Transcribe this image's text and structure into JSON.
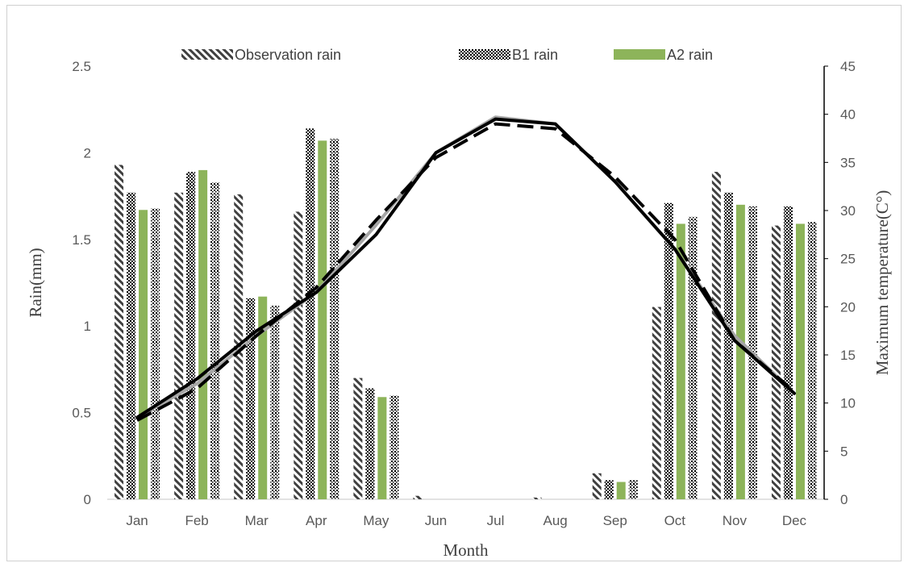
{
  "chart_data": {
    "type": "bar",
    "categories": [
      "Jan",
      "Feb",
      "Mar",
      "Apr",
      "May",
      "Jun",
      "Jul",
      "Aug",
      "Sep",
      "Oct",
      "Nov",
      "Dec"
    ],
    "xlabel": "Month",
    "ylabel": "Rain(mm)",
    "y2label": "Maximum temperature(C°)",
    "ylim": [
      0,
      2.5
    ],
    "y2lim": [
      0,
      45
    ],
    "yticks": [
      "0",
      "0.5",
      "1",
      "1.5",
      "2",
      "2.5"
    ],
    "y2ticks": [
      "0",
      "5",
      "10",
      "15",
      "20",
      "25",
      "30",
      "35",
      "40",
      "45"
    ],
    "legend_position": "top",
    "series": [
      {
        "name": "Observation rain",
        "pattern": "diagonal",
        "color": "#404040",
        "values": [
          1.93,
          1.77,
          1.76,
          1.66,
          0.7,
          0.02,
          0.0,
          0.01,
          0.15,
          1.11,
          1.89,
          1.58
        ]
      },
      {
        "name": "B1 rain",
        "pattern": "checker",
        "color": "#000000",
        "values": [
          1.77,
          1.89,
          1.16,
          2.14,
          0.64,
          0.0,
          0.0,
          0.0,
          0.11,
          1.71,
          1.77,
          1.69
        ]
      },
      {
        "name": "A2 rain",
        "pattern": "solid",
        "color": "#8db45a",
        "values": [
          1.67,
          1.9,
          1.17,
          2.07,
          0.59,
          0.0,
          0.0,
          0.0,
          0.1,
          1.59,
          1.7,
          1.59
        ]
      },
      {
        "pattern": "dots",
        "color": "#000000",
        "values": [
          1.68,
          1.83,
          1.12,
          2.08,
          0.6,
          0.0,
          0.0,
          0.0,
          0.11,
          1.63,
          1.69,
          1.6
        ]
      }
    ],
    "lines": [
      {
        "style": "solid",
        "color": "#a6a6a6",
        "values": [
          8.5,
          12.0,
          17.0,
          21.5,
          28.5,
          36.0,
          39.7,
          39.0,
          33.0,
          26.0,
          17.0,
          11.0
        ]
      },
      {
        "style": "dashed",
        "color": "#000000",
        "values": [
          8.2,
          11.5,
          17.0,
          22.0,
          29.0,
          35.5,
          39.0,
          38.5,
          33.5,
          27.0,
          16.5,
          11.2
        ]
      },
      {
        "style": "solid",
        "color": "#000000",
        "values": [
          8.5,
          12.5,
          17.5,
          21.5,
          27.5,
          36.0,
          39.5,
          39.0,
          33.0,
          26.0,
          16.5,
          11.0
        ]
      }
    ]
  }
}
